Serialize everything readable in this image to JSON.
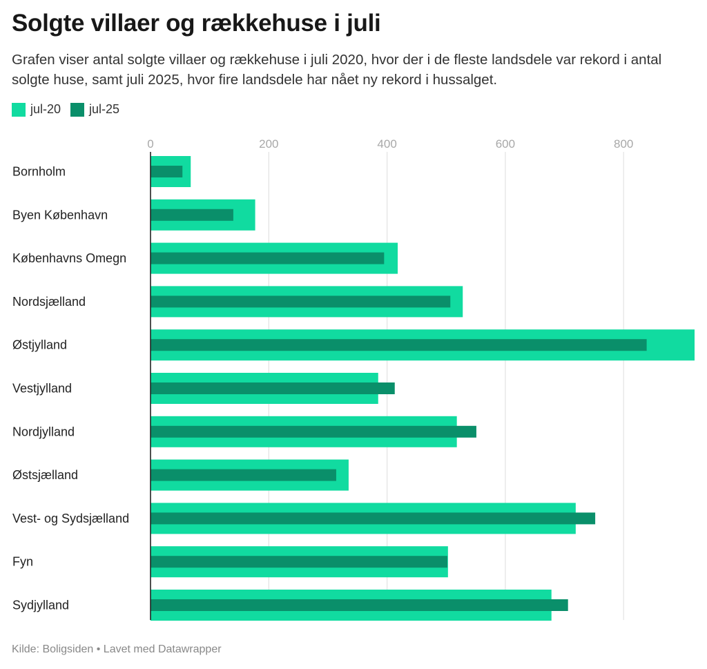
{
  "title": "Solgte villaer og rækkehuse i juli",
  "subtitle": "Grafen viser antal solgte villaer og rækkehuse i juli 2020, hvor der i de fleste landsdele var rekord i antal solgte huse, samt juli 2025, hvor fire landsdele har nået ny rekord i hussalget.",
  "source": "Kilde: Boligsiden • Lavet med Datawrapper",
  "colors": {
    "jul20": "#11dba0",
    "jul25": "#0a8f6a",
    "grid": "#e2e2e2",
    "axis": "#222222",
    "tick": "#a8a8a8",
    "label": "#222222"
  },
  "chart_data": {
    "type": "bar",
    "orientation": "horizontal",
    "categories": [
      "Bornholm",
      "Byen København",
      "Københavns Omegn",
      "Nordsjælland",
      "Østjylland",
      "Vestjylland",
      "Nordjylland",
      "Østsjælland",
      "Vest- og Sydsjælland",
      "Fyn",
      "Sydjylland"
    ],
    "series": [
      {
        "name": "jul-20",
        "values": [
          68,
          177,
          418,
          528,
          920,
          385,
          518,
          335,
          719,
          503,
          678
        ]
      },
      {
        "name": "jul-25",
        "values": [
          54,
          140,
          395,
          507,
          839,
          413,
          551,
          314,
          752,
          502,
          706
        ]
      }
    ],
    "xticks": [
      "0",
      "200",
      "400",
      "600",
      "800"
    ],
    "xlim": [
      0,
      920
    ],
    "grid": true,
    "legend": "top-left"
  }
}
